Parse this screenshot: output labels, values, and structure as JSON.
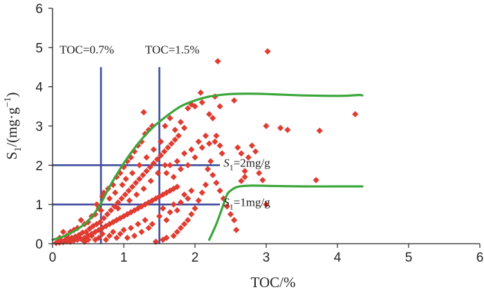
{
  "chart_data": {
    "type": "scatter",
    "title": "",
    "xlabel": "TOC/%",
    "ylabel": "S1/(mg·g−1)",
    "ylabel_parts": {
      "s": "S",
      "sub": "1",
      "unit": "/(mg·g",
      "sup": "−1",
      "close": ")"
    },
    "xlim": [
      0,
      6
    ],
    "ylim": [
      0,
      6
    ],
    "x_ticks": [
      "0",
      "1",
      "2",
      "3",
      "4",
      "5",
      "6"
    ],
    "y_ticks": [
      "0",
      "1",
      "2",
      "3",
      "4",
      "5",
      "6"
    ],
    "grid": false,
    "colors": {
      "points": "#e03c31",
      "threshold_lines": "#3b4a9c",
      "envelope": "#3aa63a",
      "axis": "#222222"
    },
    "threshold_lines": [
      {
        "orientation": "vertical",
        "x": 0.68,
        "y_range": [
          0,
          4.5
        ],
        "label": "TOC=0.7%",
        "label_at": [
          0.1,
          4.85
        ]
      },
      {
        "orientation": "vertical",
        "x": 1.5,
        "y_range": [
          0,
          4.5
        ],
        "label": "TOC=1.5%",
        "label_at": [
          1.3,
          4.85
        ]
      },
      {
        "orientation": "horizontal",
        "y": 2.0,
        "x_range": [
          0,
          2.35
        ],
        "label_prefix": "S",
        "label_sub": "1",
        "label_suffix": "=2mg/g",
        "label_at": [
          2.4,
          1.96
        ]
      },
      {
        "orientation": "horizontal",
        "y": 1.0,
        "x_range": [
          0,
          2.35
        ],
        "label_prefix": "S",
        "label_sub": "1",
        "label_suffix": "=1mg/g",
        "label_at": [
          2.4,
          0.96
        ]
      }
    ],
    "envelopes": [
      {
        "name": "upper envelope",
        "x": [
          0,
          0.2,
          0.45,
          0.6,
          0.7,
          0.8,
          1.0,
          1.2,
          1.4,
          1.6,
          1.8,
          2.0,
          2.2,
          2.4,
          2.6,
          2.9,
          3.2,
          3.5,
          3.8,
          4.1,
          4.3,
          4.35
        ],
        "y": [
          0.1,
          0.22,
          0.5,
          0.8,
          1.1,
          1.45,
          2.05,
          2.55,
          2.95,
          3.25,
          3.5,
          3.65,
          3.75,
          3.8,
          3.82,
          3.82,
          3.8,
          3.78,
          3.77,
          3.77,
          3.79,
          3.78
        ]
      },
      {
        "name": "lower envelope",
        "x": [
          2.2,
          2.3,
          2.4,
          2.45,
          2.5,
          2.6,
          2.8,
          3.1,
          3.5,
          4.0,
          4.35
        ],
        "y": [
          0.1,
          0.5,
          1.0,
          1.25,
          1.35,
          1.45,
          1.48,
          1.47,
          1.46,
          1.46,
          1.46
        ]
      }
    ],
    "points": [
      [
        0.05,
        0.02
      ],
      [
        0.08,
        0.05
      ],
      [
        0.1,
        0.03
      ],
      [
        0.12,
        0.08
      ],
      [
        0.15,
        0.04
      ],
      [
        0.18,
        0.1
      ],
      [
        0.2,
        0.06
      ],
      [
        0.22,
        0.12
      ],
      [
        0.25,
        0.05
      ],
      [
        0.27,
        0.15
      ],
      [
        0.3,
        0.08
      ],
      [
        0.32,
        0.18
      ],
      [
        0.35,
        0.1
      ],
      [
        0.37,
        0.22
      ],
      [
        0.4,
        0.12
      ],
      [
        0.42,
        0.28
      ],
      [
        0.45,
        0.15
      ],
      [
        0.47,
        0.3
      ],
      [
        0.5,
        0.2
      ],
      [
        0.52,
        0.38
      ],
      [
        0.55,
        0.25
      ],
      [
        0.57,
        0.45
      ],
      [
        0.6,
        0.3
      ],
      [
        0.62,
        0.5
      ],
      [
        0.65,
        0.35
      ],
      [
        0.67,
        0.55
      ],
      [
        0.7,
        0.4
      ],
      [
        0.72,
        0.65
      ],
      [
        0.75,
        0.45
      ],
      [
        0.77,
        0.75
      ],
      [
        0.8,
        0.5
      ],
      [
        0.82,
        0.85
      ],
      [
        0.85,
        0.55
      ],
      [
        0.87,
        0.95
      ],
      [
        0.9,
        0.6
      ],
      [
        0.92,
        1.05
      ],
      [
        0.95,
        0.65
      ],
      [
        0.97,
        1.15
      ],
      [
        1.0,
        0.7
      ],
      [
        1.02,
        1.25
      ],
      [
        1.05,
        0.75
      ],
      [
        1.07,
        1.35
      ],
      [
        1.1,
        0.8
      ],
      [
        1.12,
        1.45
      ],
      [
        1.15,
        0.85
      ],
      [
        1.17,
        1.55
      ],
      [
        1.2,
        0.9
      ],
      [
        1.22,
        1.65
      ],
      [
        1.25,
        0.95
      ],
      [
        1.27,
        1.75
      ],
      [
        1.3,
        1.0
      ],
      [
        1.32,
        1.85
      ],
      [
        1.35,
        1.05
      ],
      [
        1.37,
        1.95
      ],
      [
        1.4,
        1.1
      ],
      [
        1.42,
        2.05
      ],
      [
        1.45,
        1.15
      ],
      [
        1.47,
        2.15
      ],
      [
        1.5,
        1.2
      ],
      [
        1.52,
        2.25
      ],
      [
        1.55,
        1.25
      ],
      [
        1.57,
        2.35
      ],
      [
        1.6,
        1.3
      ],
      [
        1.62,
        2.45
      ],
      [
        1.65,
        1.35
      ],
      [
        1.67,
        2.55
      ],
      [
        1.7,
        1.4
      ],
      [
        1.72,
        2.65
      ],
      [
        1.75,
        1.45
      ],
      [
        1.77,
        2.75
      ],
      [
        0.3,
        0.35
      ],
      [
        0.45,
        0.5
      ],
      [
        0.55,
        0.7
      ],
      [
        0.65,
        0.9
      ],
      [
        0.7,
        1.2
      ],
      [
        0.78,
        1.4
      ],
      [
        0.85,
        1.5
      ],
      [
        0.9,
        1.7
      ],
      [
        0.95,
        1.8
      ],
      [
        1.0,
        1.95
      ],
      [
        1.05,
        2.1
      ],
      [
        1.1,
        2.2
      ],
      [
        1.15,
        2.35
      ],
      [
        1.2,
        2.5
      ],
      [
        1.25,
        2.6
      ],
      [
        1.3,
        2.8
      ],
      [
        1.35,
        2.9
      ],
      [
        1.4,
        3.0
      ],
      [
        1.28,
        3.35
      ],
      [
        1.58,
        3.0
      ],
      [
        1.65,
        3.2
      ],
      [
        1.72,
        2.9
      ],
      [
        1.8,
        3.1
      ],
      [
        1.85,
        2.95
      ],
      [
        1.9,
        3.45
      ],
      [
        1.95,
        3.55
      ],
      [
        2.0,
        3.5
      ],
      [
        2.08,
        3.85
      ],
      [
        2.1,
        3.6
      ],
      [
        2.2,
        3.3
      ],
      [
        2.25,
        3.2
      ],
      [
        2.28,
        2.6
      ],
      [
        2.3,
        2.75
      ],
      [
        2.35,
        2.5
      ],
      [
        2.38,
        2.3
      ],
      [
        2.22,
        2.1
      ],
      [
        2.18,
        1.9
      ],
      [
        2.15,
        1.5
      ],
      [
        2.1,
        1.3
      ],
      [
        2.05,
        1.1
      ],
      [
        2.0,
        0.9
      ],
      [
        1.95,
        0.75
      ],
      [
        1.9,
        0.6
      ],
      [
        1.85,
        0.5
      ],
      [
        1.8,
        0.4
      ],
      [
        1.75,
        0.3
      ],
      [
        1.7,
        0.2
      ],
      [
        1.6,
        0.15
      ],
      [
        1.55,
        0.1
      ],
      [
        1.45,
        0.05
      ],
      [
        1.4,
        0.5
      ],
      [
        1.35,
        0.4
      ],
      [
        1.3,
        0.6
      ],
      [
        1.25,
        0.3
      ],
      [
        1.2,
        0.5
      ],
      [
        1.15,
        0.2
      ],
      [
        1.1,
        0.4
      ],
      [
        1.05,
        0.15
      ],
      [
        1.0,
        0.35
      ],
      [
        0.95,
        0.25
      ],
      [
        0.9,
        0.15
      ],
      [
        0.85,
        0.3
      ],
      [
        0.8,
        0.2
      ],
      [
        0.75,
        0.1
      ],
      [
        0.7,
        0.25
      ],
      [
        0.65,
        0.15
      ],
      [
        0.6,
        0.1
      ],
      [
        0.55,
        0.2
      ],
      [
        0.5,
        0.1
      ],
      [
        0.45,
        0.05
      ],
      [
        1.6,
        1.8
      ],
      [
        1.65,
        2.0
      ],
      [
        1.7,
        1.7
      ],
      [
        1.75,
        2.1
      ],
      [
        1.8,
        1.9
      ],
      [
        1.85,
        2.3
      ],
      [
        1.9,
        2.0
      ],
      [
        1.95,
        2.4
      ],
      [
        2.0,
        2.2
      ],
      [
        2.05,
        2.6
      ],
      [
        2.1,
        2.45
      ],
      [
        2.15,
        2.75
      ],
      [
        2.2,
        2.55
      ],
      [
        2.25,
        1.75
      ],
      [
        2.3,
        1.55
      ],
      [
        2.35,
        1.35
      ],
      [
        2.4,
        1.15
      ],
      [
        2.45,
        0.95
      ],
      [
        2.5,
        0.75
      ],
      [
        2.55,
        0.6
      ],
      [
        1.5,
        0.7
      ],
      [
        1.55,
        0.9
      ],
      [
        1.6,
        0.6
      ],
      [
        1.65,
        0.8
      ],
      [
        1.7,
        1.0
      ],
      [
        1.75,
        0.85
      ],
      [
        1.8,
        1.05
      ],
      [
        1.85,
        1.25
      ],
      [
        1.9,
        1.15
      ],
      [
        1.95,
        1.35
      ],
      [
        2.58,
        0.35
      ],
      [
        2.6,
        2.45
      ],
      [
        2.65,
        2.3
      ],
      [
        2.7,
        1.85
      ],
      [
        2.75,
        2.2
      ],
      [
        2.8,
        2.5
      ],
      [
        2.85,
        2.35
      ],
      [
        2.9,
        1.8
      ],
      [
        2.7,
        1.7
      ],
      [
        2.65,
        1.6
      ],
      [
        2.55,
        3.65
      ],
      [
        2.35,
        3.5
      ],
      [
        2.28,
        3.75
      ],
      [
        2.32,
        4.65
      ],
      [
        3.02,
        4.9
      ],
      [
        3.0,
        3.0
      ],
      [
        3.0,
        1.0
      ],
      [
        3.3,
        2.9
      ],
      [
        3.75,
        2.88
      ],
      [
        3.7,
        1.62
      ],
      [
        4.25,
        3.3
      ],
      [
        3.2,
        2.95
      ],
      [
        2.95,
        1.62
      ],
      [
        0.1,
        0.15
      ],
      [
        0.2,
        0.2
      ],
      [
        0.15,
        0.3
      ],
      [
        0.25,
        0.3
      ],
      [
        0.35,
        0.4
      ],
      [
        0.4,
        0.6
      ],
      [
        0.5,
        0.55
      ],
      [
        0.6,
        0.75
      ],
      [
        0.62,
        1.0
      ],
      [
        0.72,
        1.3
      ],
      [
        0.68,
        0.85
      ],
      [
        0.8,
        1.15
      ],
      [
        0.88,
        1.3
      ],
      [
        0.92,
        0.9
      ],
      [
        0.98,
        1.5
      ],
      [
        1.03,
        1.65
      ],
      [
        1.08,
        1.1
      ],
      [
        1.12,
        1.8
      ],
      [
        1.18,
        1.25
      ],
      [
        1.22,
        2.0
      ],
      [
        1.28,
        1.4
      ],
      [
        1.32,
        2.2
      ],
      [
        1.38,
        1.6
      ],
      [
        1.42,
        2.4
      ],
      [
        1.48,
        1.8
      ],
      [
        1.52,
        2.6
      ],
      [
        1.58,
        2.0
      ]
    ]
  }
}
